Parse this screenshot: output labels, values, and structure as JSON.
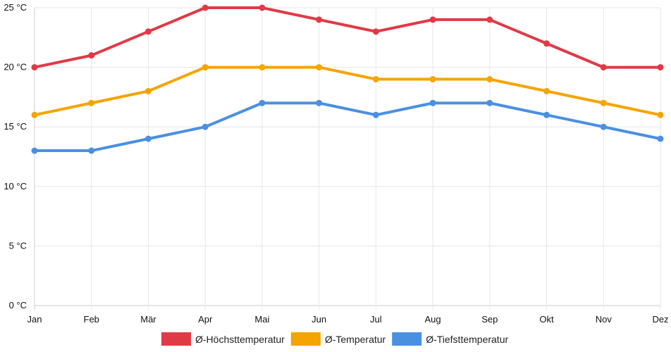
{
  "chart_data": {
    "type": "line",
    "title": "",
    "xlabel": "",
    "ylabel": "",
    "categories": [
      "Jan",
      "Feb",
      "Mär",
      "Apr",
      "Mai",
      "Jun",
      "Jul",
      "Aug",
      "Sep",
      "Okt",
      "Nov",
      "Dez"
    ],
    "y_ticks": [
      0,
      5,
      10,
      15,
      20,
      25
    ],
    "y_tick_labels": [
      "0 °C",
      "5 °C",
      "10 °C",
      "15 °C",
      "20 °C",
      "25 °C"
    ],
    "ylim": [
      0,
      25
    ],
    "grid": true,
    "legend_position": "bottom-center",
    "series": [
      {
        "name": "Ø-Höchsttemperatur",
        "color": "#e03a45",
        "values": [
          20,
          21,
          23,
          25,
          25,
          24,
          23,
          24,
          24,
          22,
          20,
          20
        ]
      },
      {
        "name": "Ø-Temperatur",
        "color": "#f5a400",
        "values": [
          16,
          17,
          18,
          20,
          20,
          20,
          19,
          19,
          19,
          18,
          17,
          16
        ]
      },
      {
        "name": "Ø-Tiefsttemperatur",
        "color": "#4a90e2",
        "values": [
          13,
          13,
          14,
          15,
          17,
          17,
          16,
          17,
          17,
          16,
          15,
          14
        ]
      }
    ]
  }
}
